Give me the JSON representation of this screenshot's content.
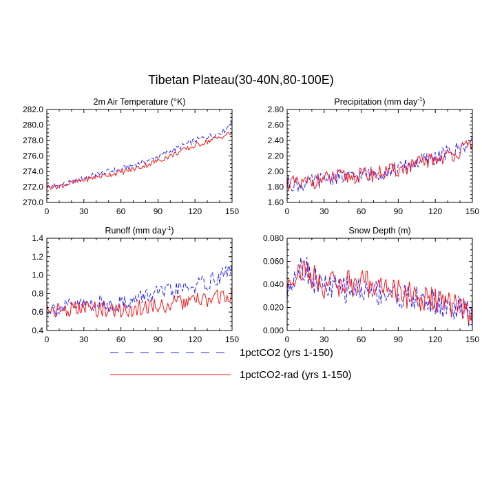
{
  "title": "Tibetan Plateau(30-40N,80-100E)",
  "colors": {
    "series_dashed": "#2020ff",
    "series_solid": "#ff1010",
    "axes": "#000000"
  },
  "legend": {
    "placement": "bottom-center",
    "items": [
      {
        "label": "1pctCO2 (yrs 1-150)",
        "color": "#2020ff",
        "dash": true
      },
      {
        "label": "1pctCO2-rad (yrs 1-150)",
        "color": "#ff1010",
        "dash": false
      }
    ]
  },
  "chart_data": [
    {
      "type": "line",
      "title": "2m Air Temperature (°K)",
      "xlim": [
        0,
        150
      ],
      "ylim": [
        270.0,
        282.0
      ],
      "xticks": [
        0,
        30,
        60,
        90,
        120,
        150
      ],
      "yticks": [
        "270.0",
        "272.0",
        "274.0",
        "276.0",
        "278.0",
        "280.0",
        "282.0"
      ],
      "series": [
        {
          "name": "1pctCO2 (yrs 1-150)",
          "x": [
            0,
            10,
            20,
            30,
            40,
            50,
            60,
            70,
            80,
            90,
            100,
            110,
            120,
            130,
            140,
            145,
            150
          ],
          "y": [
            272.0,
            272.2,
            272.6,
            273.1,
            273.6,
            274.0,
            274.3,
            274.8,
            275.3,
            275.9,
            276.6,
            277.3,
            278.0,
            278.5,
            279.0,
            279.4,
            280.6
          ]
        },
        {
          "name": "1pctCO2-rad (yrs 1-150)",
          "x": [
            0,
            10,
            20,
            30,
            40,
            50,
            60,
            70,
            80,
            90,
            100,
            110,
            120,
            130,
            140,
            145,
            150
          ],
          "y": [
            272.0,
            272.1,
            272.5,
            272.9,
            273.3,
            273.6,
            273.9,
            274.3,
            274.8,
            275.4,
            276.0,
            276.7,
            277.3,
            277.9,
            278.4,
            278.7,
            279.0
          ]
        }
      ]
    },
    {
      "type": "line",
      "title": "Precipitation (mm day-1)",
      "xlim": [
        0,
        150
      ],
      "ylim": [
        1.6,
        2.8
      ],
      "xticks": [
        0,
        30,
        60,
        90,
        120,
        150
      ],
      "yticks": [
        "1.60",
        "1.80",
        "2.00",
        "2.20",
        "2.40",
        "2.60",
        "2.80"
      ],
      "series": [
        {
          "name": "1pctCO2 (yrs 1-150)",
          "x": [
            0,
            10,
            20,
            30,
            40,
            50,
            60,
            70,
            80,
            90,
            100,
            110,
            120,
            130,
            140,
            150
          ],
          "y": [
            1.86,
            1.82,
            1.86,
            1.9,
            1.93,
            1.92,
            1.95,
            1.98,
            2.0,
            2.03,
            2.1,
            2.14,
            2.18,
            2.24,
            2.3,
            2.4
          ]
        },
        {
          "name": "1pctCO2-rad (yrs 1-150)",
          "x": [
            0,
            10,
            20,
            30,
            40,
            50,
            60,
            70,
            80,
            90,
            100,
            110,
            120,
            130,
            140,
            150
          ],
          "y": [
            1.86,
            1.83,
            1.87,
            1.9,
            1.93,
            1.93,
            1.95,
            1.96,
            2.0,
            2.02,
            2.06,
            2.12,
            2.16,
            2.2,
            2.26,
            2.36
          ]
        }
      ]
    },
    {
      "type": "line",
      "title": "Runoff (mm day-1)",
      "xlim": [
        0,
        150
      ],
      "ylim": [
        0.4,
        1.4
      ],
      "xticks": [
        0,
        30,
        60,
        90,
        120,
        150
      ],
      "yticks": [
        "0.4",
        "0.6",
        "0.8",
        "1.0",
        "1.2",
        "1.4"
      ],
      "series": [
        {
          "name": "1pctCO2 (yrs 1-150)",
          "x": [
            0,
            10,
            20,
            30,
            40,
            50,
            60,
            70,
            80,
            90,
            100,
            110,
            120,
            130,
            140,
            150
          ],
          "y": [
            0.65,
            0.64,
            0.66,
            0.68,
            0.7,
            0.68,
            0.7,
            0.72,
            0.78,
            0.8,
            0.82,
            0.85,
            0.88,
            0.92,
            0.98,
            1.08
          ]
        },
        {
          "name": "1pctCO2-rad (yrs 1-150)",
          "x": [
            0,
            10,
            20,
            30,
            40,
            50,
            60,
            70,
            80,
            90,
            100,
            110,
            120,
            130,
            140,
            150
          ],
          "y": [
            0.64,
            0.62,
            0.63,
            0.64,
            0.64,
            0.62,
            0.62,
            0.63,
            0.66,
            0.67,
            0.68,
            0.7,
            0.72,
            0.73,
            0.76,
            0.8
          ]
        }
      ]
    },
    {
      "type": "line",
      "title": "Snow Depth (m)",
      "xlim": [
        0,
        150
      ],
      "ylim": [
        0.0,
        0.08
      ],
      "xticks": [
        0,
        30,
        60,
        90,
        120,
        150
      ],
      "yticks": [
        "0.000",
        "0.020",
        "0.040",
        "0.060",
        "0.080"
      ],
      "series": [
        {
          "name": "1pctCO2 (yrs 1-150)",
          "x": [
            0,
            5,
            10,
            15,
            20,
            30,
            40,
            50,
            60,
            70,
            80,
            90,
            100,
            110,
            120,
            130,
            140,
            150
          ],
          "y": [
            0.03,
            0.05,
            0.055,
            0.055,
            0.045,
            0.038,
            0.036,
            0.036,
            0.035,
            0.034,
            0.033,
            0.03,
            0.028,
            0.026,
            0.024,
            0.021,
            0.018,
            0.012
          ]
        },
        {
          "name": "1pctCO2-rad (yrs 1-150)",
          "x": [
            0,
            5,
            10,
            15,
            20,
            30,
            40,
            50,
            60,
            70,
            80,
            90,
            100,
            110,
            120,
            130,
            140,
            150
          ],
          "y": [
            0.04,
            0.048,
            0.052,
            0.052,
            0.046,
            0.04,
            0.04,
            0.041,
            0.04,
            0.04,
            0.038,
            0.033,
            0.03,
            0.027,
            0.026,
            0.023,
            0.02,
            0.016
          ]
        }
      ]
    }
  ]
}
